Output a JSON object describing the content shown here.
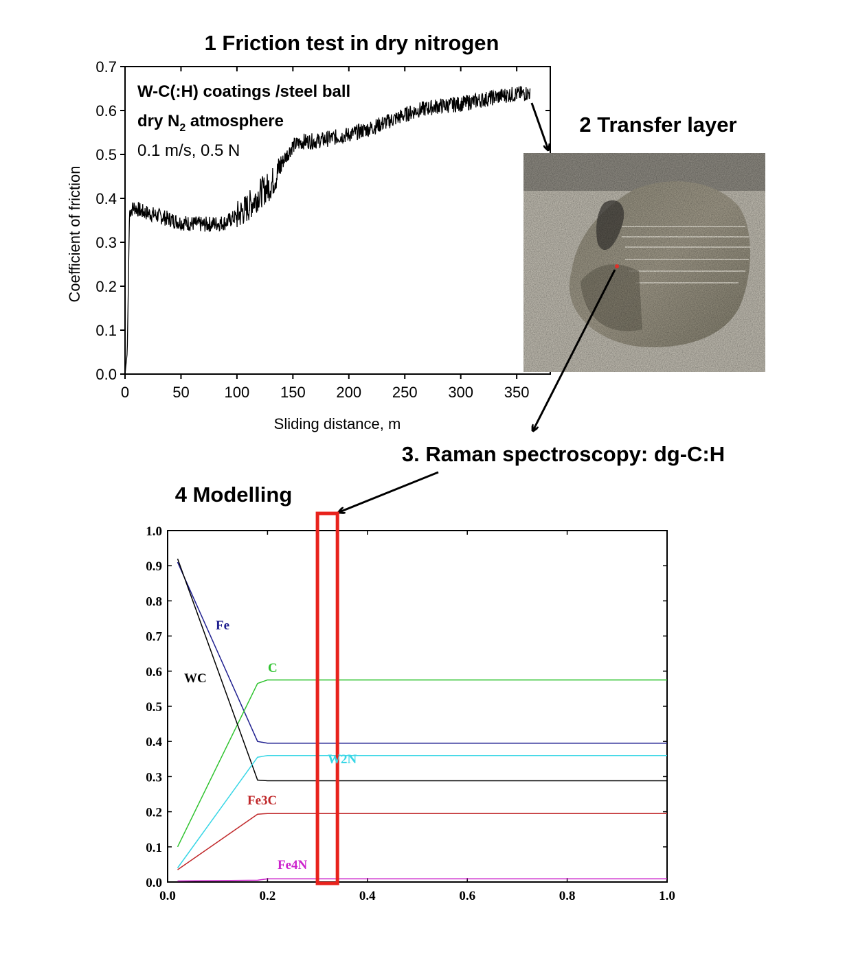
{
  "headings": {
    "step1": "1 Friction test in dry nitrogen",
    "step2": "2 Transfer layer",
    "step3": "3. Raman spectroscopy: dg-C:H",
    "step4": "4 Modelling"
  },
  "friction_annotation": {
    "line1": "W-C(:H) coatings /steel ball",
    "line2_pre": "dry N",
    "line2_sub": "2",
    "line2_post": " atmosphere",
    "line3": "0.1 m/s, 0.5 N"
  },
  "colors": {
    "friction_line": "#000000",
    "highlight_box": "#e8221c",
    "Fe": "#1f1f8f",
    "C": "#2fc32f",
    "WC": "#000000",
    "W2N": "#38d6e6",
    "Fe3C": "#c0282a",
    "Fe4N": "#cc22cc"
  },
  "chart_data": [
    {
      "type": "line",
      "title": "1 Friction test in dry nitrogen",
      "xlabel": "Sliding distance, m",
      "ylabel": "Coefficient of friction",
      "xlim": [
        0,
        380
      ],
      "ylim": [
        0,
        0.7
      ],
      "xticks": [
        0,
        50,
        100,
        150,
        200,
        250,
        300,
        350
      ],
      "yticks": [
        0.0,
        0.1,
        0.2,
        0.3,
        0.4,
        0.5,
        0.6,
        0.7
      ],
      "xtick_labels": [
        "0",
        "50",
        "100",
        "150",
        "200",
        "250",
        "300",
        "350"
      ],
      "ytick_labels": [
        "0.0",
        "0.1",
        "0.2",
        "0.3",
        "0.4",
        "0.5",
        "0.6",
        "0.7"
      ],
      "grid": false,
      "series": [
        {
          "x": [
            0,
            2,
            4,
            8,
            15,
            30,
            50,
            70,
            90,
            100,
            110,
            120,
            130,
            135,
            140,
            150,
            160,
            170,
            180,
            200,
            220,
            240,
            260,
            280,
            300,
            320,
            340,
            362
          ],
          "y": [
            0.0,
            0.05,
            0.37,
            0.38,
            0.37,
            0.36,
            0.345,
            0.34,
            0.345,
            0.36,
            0.38,
            0.41,
            0.43,
            0.45,
            0.48,
            0.52,
            0.53,
            0.53,
            0.535,
            0.545,
            0.56,
            0.58,
            0.6,
            0.61,
            0.615,
            0.625,
            0.635,
            0.64
          ]
        }
      ]
    },
    {
      "type": "line",
      "title": "4 Modelling",
      "xlim": [
        0,
        1.0
      ],
      "ylim": [
        0,
        1.0
      ],
      "xticks": [
        0.0,
        0.2,
        0.4,
        0.6,
        0.8,
        1.0
      ],
      "yticks": [
        0.0,
        0.1,
        0.2,
        0.3,
        0.4,
        0.5,
        0.6,
        0.7,
        0.8,
        0.9,
        1.0
      ],
      "xtick_labels": [
        "0.0",
        "0.2",
        "0.4",
        "0.6",
        "0.8",
        "1.0"
      ],
      "ytick_labels": [
        "0.0",
        "0.1",
        "0.2",
        "0.3",
        "0.4",
        "0.5",
        "0.6",
        "0.7",
        "0.8",
        "0.9",
        "1.0"
      ],
      "grid": false,
      "highlight_range_x": [
        0.3,
        0.34
      ],
      "series": [
        {
          "name": "Fe",
          "x": [
            0.02,
            0.18,
            0.2,
            1.0
          ],
          "y": [
            0.91,
            0.4,
            0.395,
            0.395
          ]
        },
        {
          "name": "C",
          "x": [
            0.02,
            0.18,
            0.2,
            1.0
          ],
          "y": [
            0.1,
            0.565,
            0.575,
            0.575
          ]
        },
        {
          "name": "WC",
          "x": [
            0.02,
            0.18,
            0.2,
            1.0
          ],
          "y": [
            0.92,
            0.29,
            0.288,
            0.288
          ]
        },
        {
          "name": "W2N",
          "x": [
            0.02,
            0.18,
            0.2,
            1.0
          ],
          "y": [
            0.04,
            0.355,
            0.36,
            0.36
          ]
        },
        {
          "name": "Fe3C",
          "x": [
            0.02,
            0.18,
            0.2,
            1.0
          ],
          "y": [
            0.035,
            0.193,
            0.195,
            0.195
          ]
        },
        {
          "name": "Fe4N",
          "x": [
            0.02,
            0.18,
            0.2,
            1.0
          ],
          "y": [
            0.003,
            0.005,
            0.009,
            0.009
          ]
        }
      ]
    }
  ]
}
